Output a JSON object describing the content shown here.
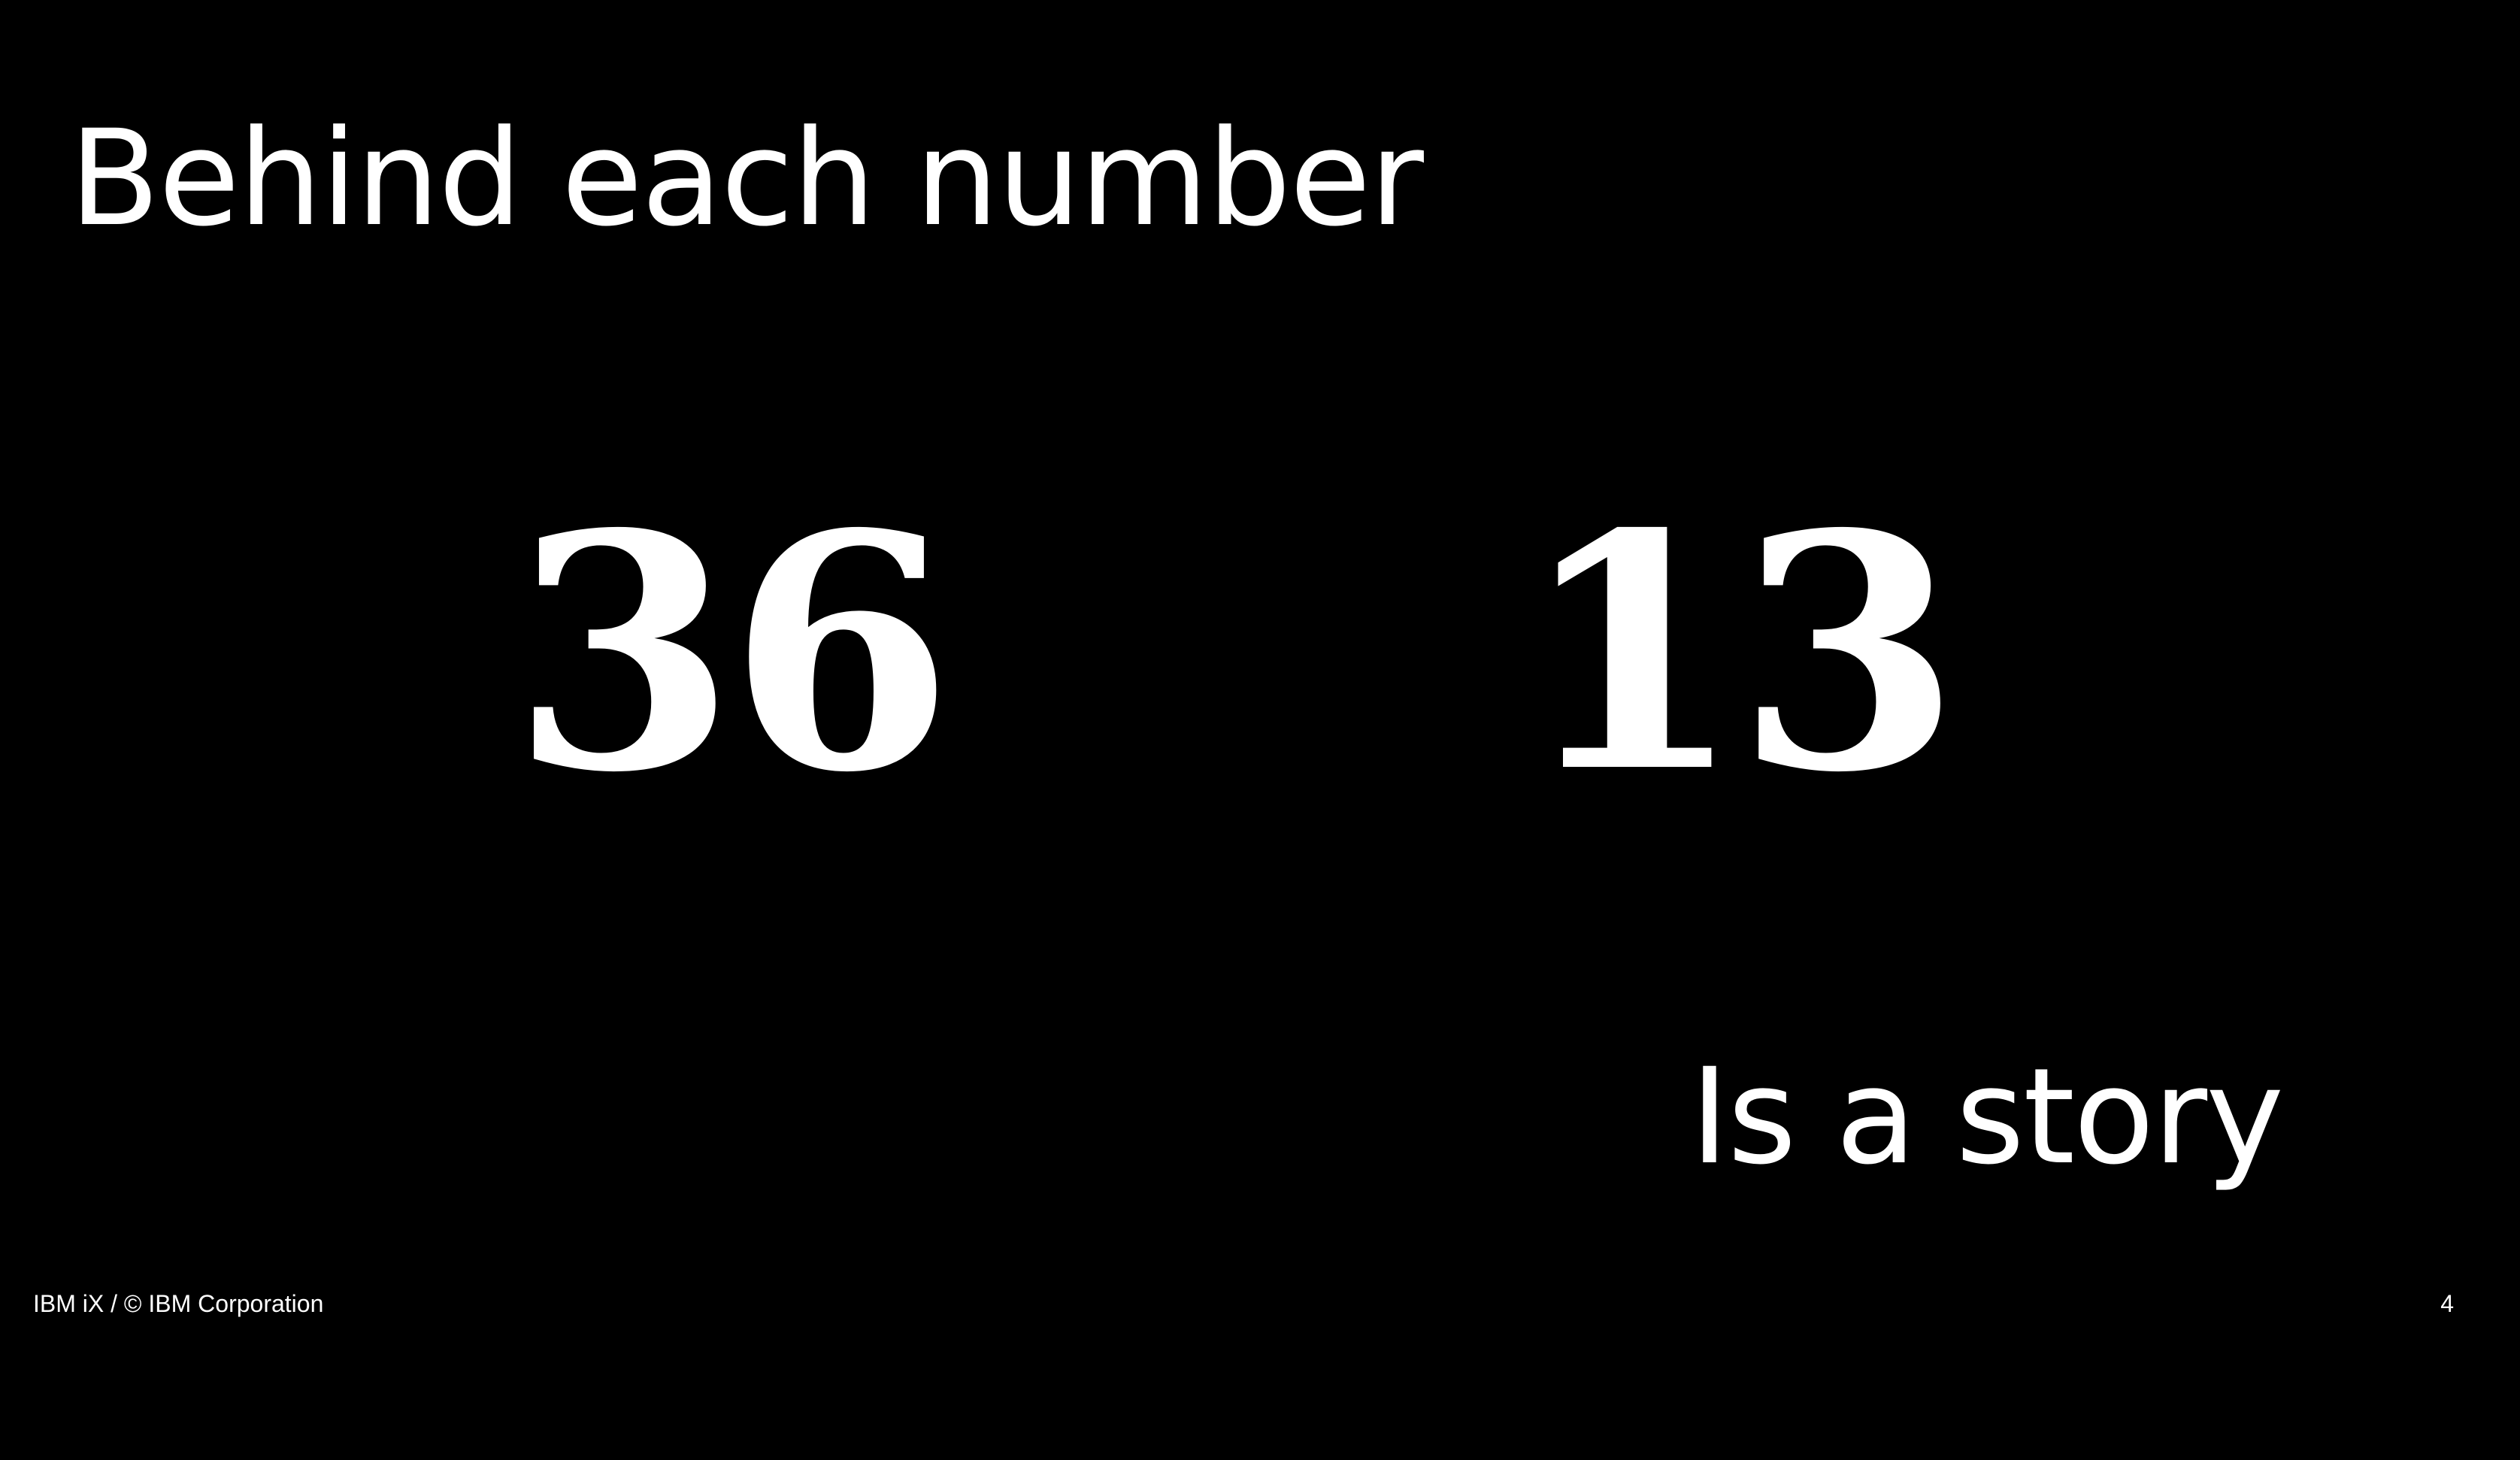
{
  "slide": {
    "title": "Behind each number",
    "stats": [
      {
        "value": "36"
      },
      {
        "value": "13"
      }
    ],
    "subtitle": "Is a story",
    "footer": "IBM iX / © IBM Corporation",
    "page_number": "4"
  }
}
